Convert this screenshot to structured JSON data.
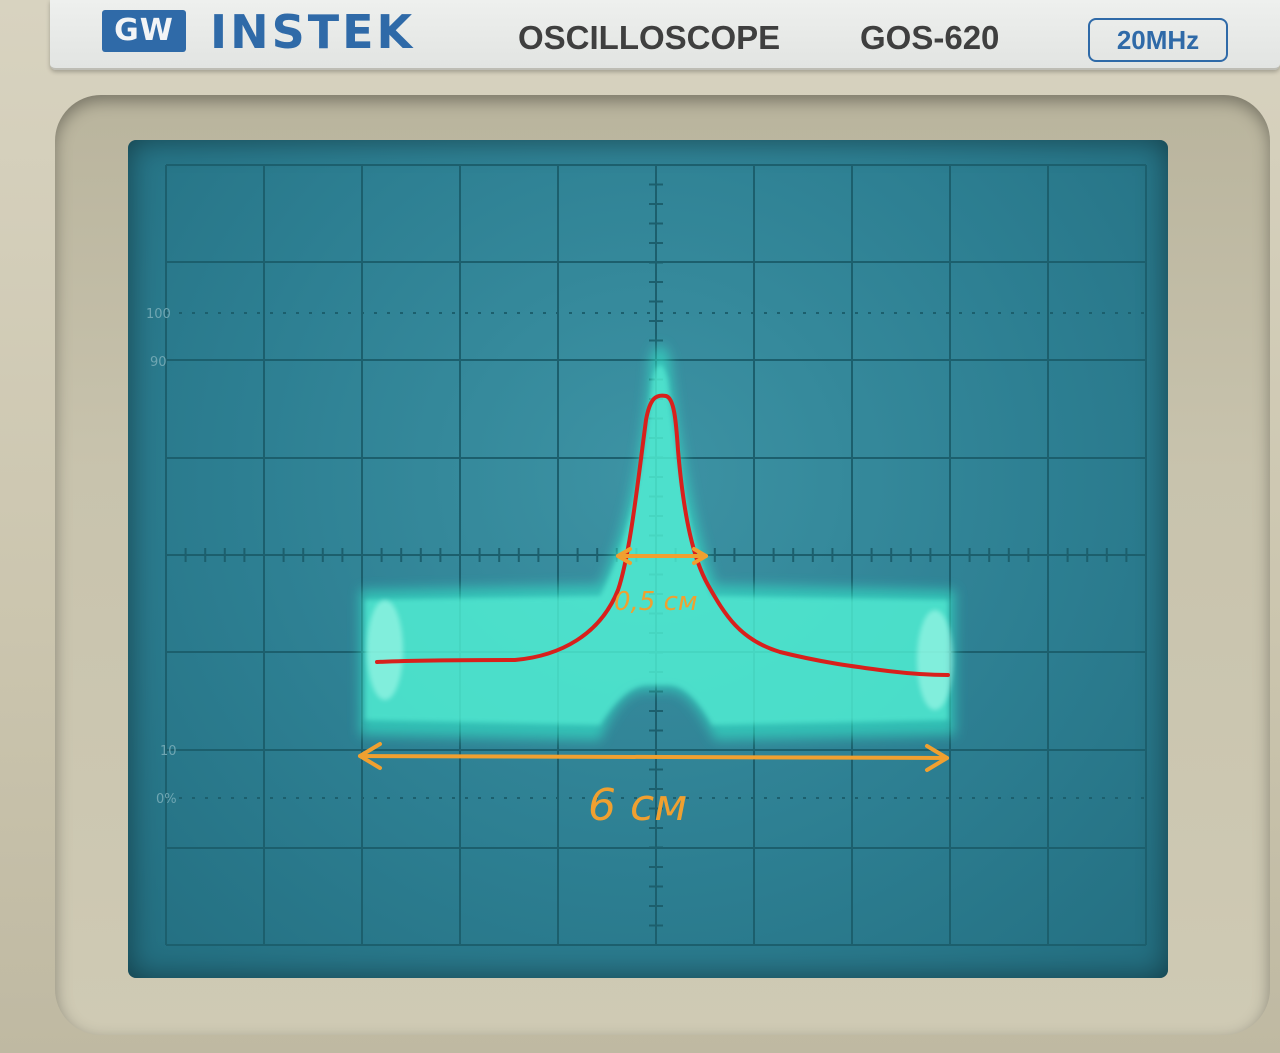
{
  "nameplate": {
    "brand_badge": "GW",
    "brand_name": "INSTEK",
    "device_type": "OSCILLOSCOPE",
    "model": "GOS-620",
    "bandwidth": "20MHz"
  },
  "screen": {
    "scale_labels": {
      "top": "100",
      "upper": "90",
      "lower": "10",
      "bottom": "0%"
    },
    "colors": {
      "screen": "#2d7f92",
      "grid": "#1c5f6d",
      "trace": "#36f2cf",
      "sketch": "#d8201c",
      "annotation": "#f0a030"
    }
  },
  "annotations": {
    "peak_width_label": "0,5 см",
    "span_width_label": "6 см"
  }
}
